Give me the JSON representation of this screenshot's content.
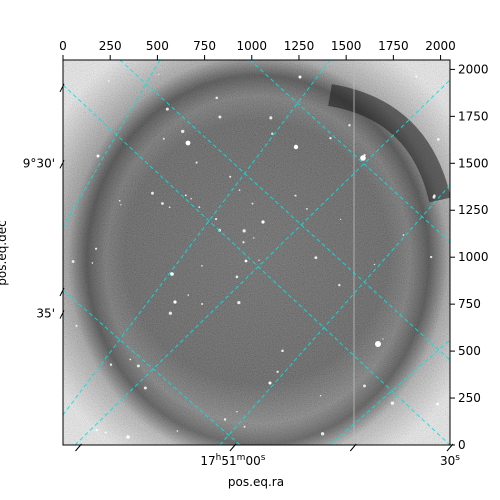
{
  "chart_data": {
    "type": "heatmap",
    "title": "",
    "xlabel": "pos.eq.ra",
    "ylabel": "pos.eq.dec",
    "colormap": "grayscale",
    "grid_color": "#00e5e5",
    "pixel_axes": {
      "x": {
        "range": [
          0,
          2050
        ],
        "ticks": [
          0,
          250,
          500,
          750,
          1000,
          1250,
          1500,
          1750,
          2000
        ]
      },
      "y": {
        "range": [
          0,
          2050
        ],
        "ticks": [
          0,
          250,
          500,
          750,
          1000,
          1250,
          1500,
          1750,
          2000
        ]
      }
    },
    "ra_ticks": [
      {
        "label": "17h51m00s",
        "x": 900
      },
      {
        "label": "30s",
        "x": 2050
      }
    ],
    "dec_ticks": [
      {
        "label": "9°30'",
        "y": 1500
      },
      {
        "label": "35'",
        "y": 700
      }
    ],
    "features": [
      "dark vignetted outer corners",
      "bright annular halo ring",
      "faint vertical column near x=1540",
      "scattered point-source stars"
    ]
  }
}
